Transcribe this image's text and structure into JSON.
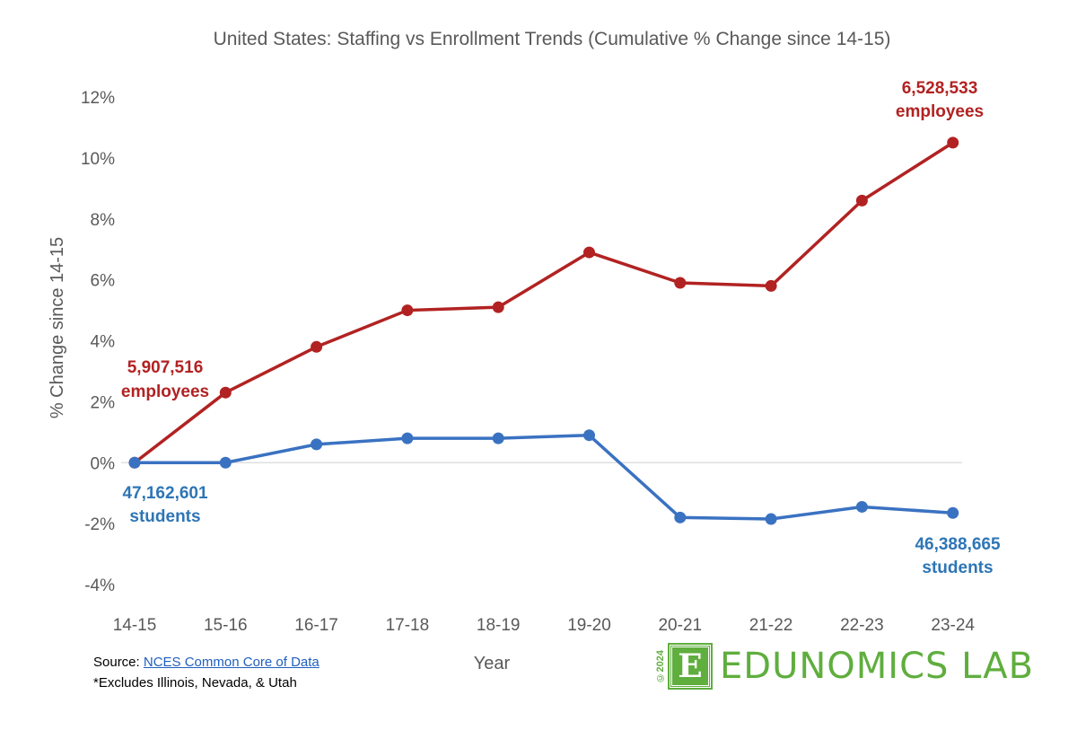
{
  "chart_data": {
    "type": "line",
    "title": "United States: Staffing vs Enrollment Trends (Cumulative % Change since 14-15)",
    "xlabel": "Year",
    "ylabel": "% Change since 14-15",
    "categories": [
      "14-15",
      "15-16",
      "16-17",
      "17-18",
      "18-19",
      "19-20",
      "20-21",
      "21-22",
      "22-23",
      "23-24"
    ],
    "ylim": [
      -4,
      12
    ],
    "yticks": [
      -4,
      -2,
      0,
      2,
      4,
      6,
      8,
      10,
      12
    ],
    "ytick_labels": [
      "-4%",
      "-2%",
      "0%",
      "2%",
      "4%",
      "6%",
      "8%",
      "10%",
      "12%"
    ],
    "grid": false,
    "series": [
      {
        "name": "Employees",
        "color": "#b22222",
        "values": [
          0,
          2.3,
          3.8,
          5.0,
          5.1,
          6.9,
          5.9,
          5.8,
          8.6,
          10.5
        ]
      },
      {
        "name": "Students",
        "color": "#3a72c2",
        "values": [
          0,
          0,
          0.6,
          0.8,
          0.8,
          0.9,
          -1.8,
          -1.85,
          -1.45,
          -1.65
        ]
      }
    ],
    "annotations": {
      "emp_start_value": "5,907,516",
      "emp_start_unit": "employees",
      "emp_end_value": "6,528,533",
      "emp_end_unit": "employees",
      "stu_start_value": "47,162,601",
      "stu_start_unit": "students",
      "stu_end_value": "46,388,665",
      "stu_end_unit": "students"
    }
  },
  "footer": {
    "source_label": "Source:",
    "source_link": "NCES Common Core of Data",
    "note": "*Excludes Illinois, Nevada, & Utah"
  },
  "logo": {
    "year": "©2024",
    "letter": "E",
    "text": "EDUNOMICS LAB"
  },
  "colors": {
    "employees": "#b22222",
    "students": "#3a72c2",
    "brand": "#5fae3e"
  }
}
